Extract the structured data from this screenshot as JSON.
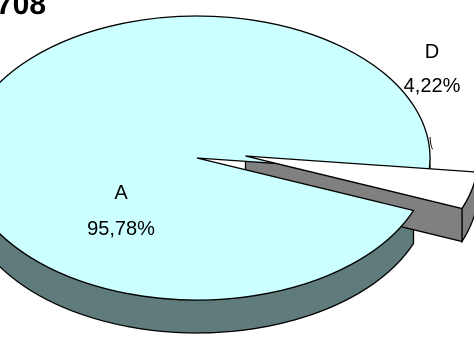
{
  "chart_data": {
    "type": "pie",
    "title": "708",
    "is_3d": true,
    "values": [
      95.78,
      4.22
    ],
    "slices": [
      {
        "label": "A",
        "value_label": "95,78%",
        "value": 95.78,
        "color": "#ccffff",
        "side_color": "#607b7b",
        "exploded": false
      },
      {
        "label": "D",
        "value_label": "4,22%",
        "value": 4.22,
        "color": "#ffffff",
        "side_color": "#808080",
        "exploded": true
      }
    ],
    "legend": "none"
  }
}
